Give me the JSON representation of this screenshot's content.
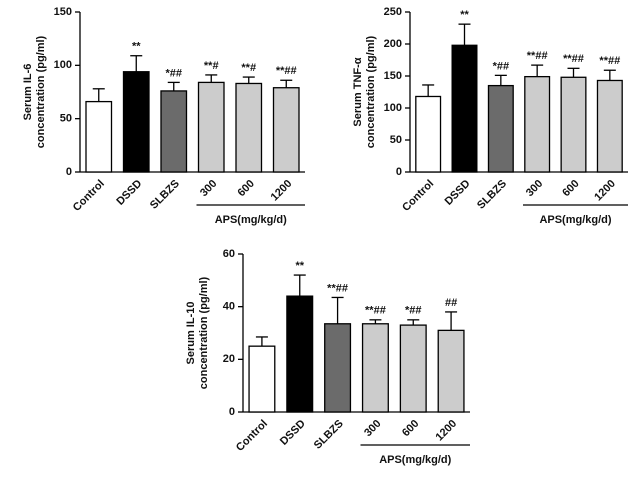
{
  "chart_data": [
    {
      "type": "bar",
      "ylabel": [
        "Serum IL-6",
        "concentration (pg/ml)"
      ],
      "categories": [
        "Control",
        "DSSD",
        "SLBZS",
        "300",
        "600",
        "1200"
      ],
      "values": [
        66,
        94,
        76,
        84,
        83,
        79
      ],
      "errors": [
        12,
        15,
        8,
        7,
        6,
        7
      ],
      "annotations": [
        null,
        "**",
        "*##",
        "**#",
        "**#",
        "**##"
      ],
      "colors": [
        "#ffffff",
        "#000000",
        "#6b6b6b",
        "#cccccc",
        "#cccccc",
        "#cccccc"
      ],
      "group": {
        "label": "APS(mg/kg/d)",
        "members": [
          "300",
          "600",
          "1200"
        ]
      },
      "ylim": [
        0,
        150
      ],
      "yticks": [
        0,
        50,
        100,
        150
      ]
    },
    {
      "type": "bar",
      "ylabel": [
        "Serum TNF-α",
        "concentration (pg/ml)"
      ],
      "categories": [
        "Control",
        "DSSD",
        "SLBZS",
        "300",
        "600",
        "1200"
      ],
      "values": [
        118,
        198,
        135,
        149,
        148,
        143
      ],
      "errors": [
        18,
        33,
        16,
        18,
        14,
        16
      ],
      "annotations": [
        null,
        "**",
        "*##",
        "**##",
        "**##",
        "**##"
      ],
      "colors": [
        "#ffffff",
        "#000000",
        "#6b6b6b",
        "#cccccc",
        "#cccccc",
        "#cccccc"
      ],
      "group": {
        "label": "APS(mg/kg/d)",
        "members": [
          "300",
          "600",
          "1200"
        ]
      },
      "ylim": [
        0,
        250
      ],
      "yticks": [
        0,
        50,
        100,
        150,
        200,
        250
      ]
    },
    {
      "type": "bar",
      "ylabel": [
        "Serum IL-10",
        "concentration (pg/ml)"
      ],
      "categories": [
        "Control",
        "DSSD",
        "SLBZS",
        "300",
        "600",
        "1200"
      ],
      "values": [
        25,
        44,
        33.5,
        33.5,
        33,
        31
      ],
      "errors": [
        3.5,
        8,
        10,
        1.5,
        2,
        7
      ],
      "annotations": [
        null,
        "**",
        "**##",
        "**##",
        "*##",
        "##"
      ],
      "colors": [
        "#ffffff",
        "#000000",
        "#6b6b6b",
        "#cccccc",
        "#cccccc",
        "#cccccc"
      ],
      "group": {
        "label": "APS(mg/kg/d)",
        "members": [
          "300",
          "600",
          "1200"
        ]
      },
      "ylim": [
        0,
        60
      ],
      "yticks": [
        0,
        20,
        40,
        60
      ]
    }
  ]
}
